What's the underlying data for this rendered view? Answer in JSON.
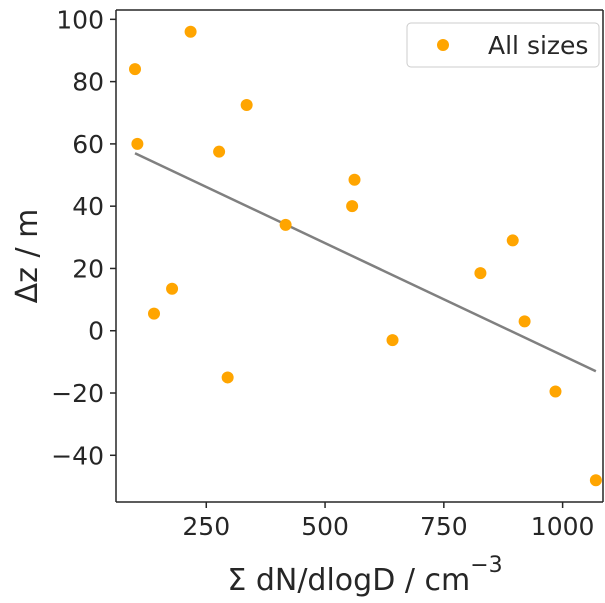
{
  "chart_data": {
    "type": "scatter",
    "xlabel": "Σ dN/dlogD / cm",
    "xlabel_superscript": "−3",
    "ylabel": "Δz / m",
    "xlim": [
      60,
      1085
    ],
    "ylim": [
      -55,
      103
    ],
    "x_ticks": [
      250,
      500,
      750,
      1000
    ],
    "y_ticks": [
      100,
      80,
      60,
      40,
      20,
      0,
      -20,
      -40
    ],
    "x_tick_labels": [
      "250",
      "500",
      "750",
      "1000"
    ],
    "y_tick_labels": [
      "100",
      "80",
      "60",
      "40",
      "20",
      "0",
      "−20",
      "−40"
    ],
    "grid": false,
    "legend": {
      "position": "top-right",
      "entries": [
        "All sizes"
      ]
    },
    "series": [
      {
        "name": "All sizes",
        "color": "#ffa500",
        "points": [
          {
            "x": 100,
            "y": 84
          },
          {
            "x": 105,
            "y": 60
          },
          {
            "x": 140,
            "y": 5.5
          },
          {
            "x": 178,
            "y": 13.5
          },
          {
            "x": 217,
            "y": 96
          },
          {
            "x": 277,
            "y": 57.5
          },
          {
            "x": 295,
            "y": -15
          },
          {
            "x": 335,
            "y": 72.5
          },
          {
            "x": 417,
            "y": 34
          },
          {
            "x": 557,
            "y": 40
          },
          {
            "x": 562,
            "y": 48.5
          },
          {
            "x": 642,
            "y": -3
          },
          {
            "x": 827,
            "y": 18.5
          },
          {
            "x": 895,
            "y": 29
          },
          {
            "x": 920,
            "y": 3
          },
          {
            "x": 985,
            "y": -19.5
          },
          {
            "x": 1070,
            "y": -48
          }
        ]
      }
    ],
    "fit_line": {
      "color": "#808080",
      "x": [
        100,
        1070
      ],
      "y": [
        57,
        -13
      ]
    }
  }
}
